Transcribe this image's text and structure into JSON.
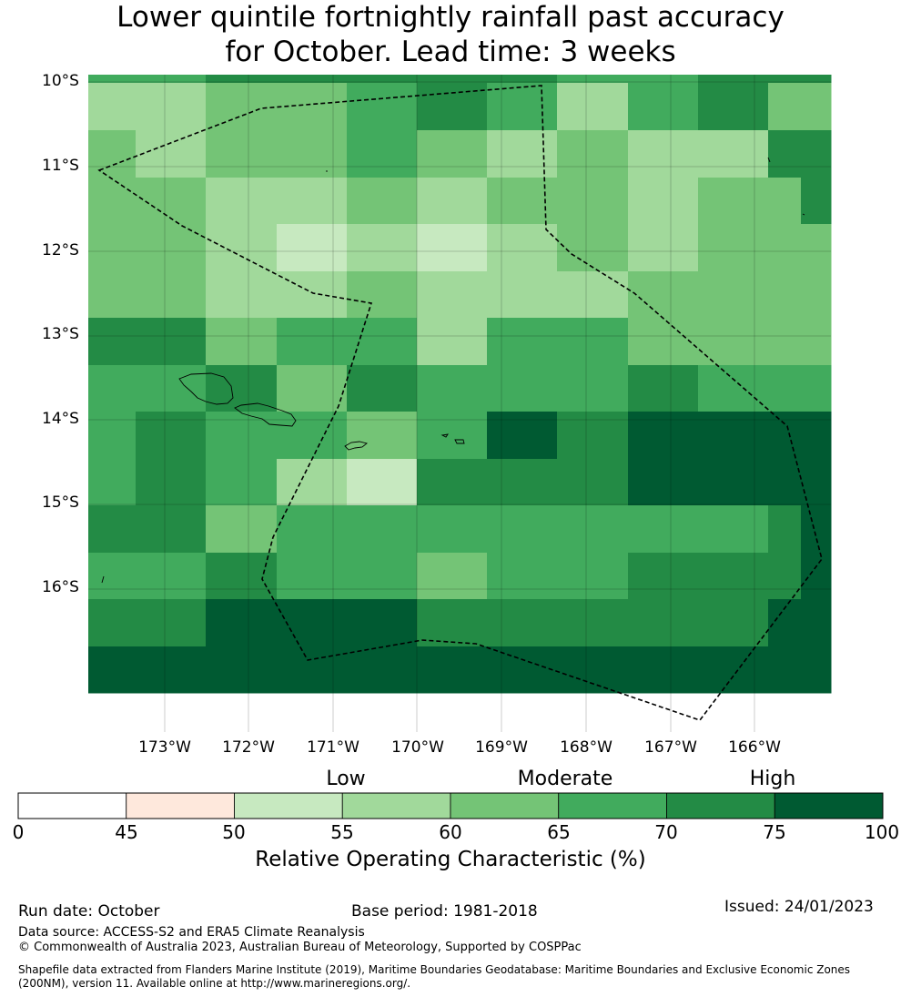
{
  "title": {
    "line1": "Lower quintile fortnightly rainfall past accuracy",
    "line2": "for October. Lead time: 3 weeks"
  },
  "map": {
    "lat_labels": [
      "10°S",
      "11°S",
      "12°S",
      "13°S",
      "14°S",
      "15°S",
      "16°S"
    ],
    "lon_labels": [
      "173°W",
      "172°W",
      "171°W",
      "170°W",
      "169°W",
      "168°W",
      "167°W",
      "166°W"
    ],
    "grid": [
      [
        3,
        3,
        5,
        5,
        5,
        5,
        5,
        3,
        3,
        5,
        4,
        5
      ],
      [
        1,
        1,
        2,
        2,
        3,
        5,
        3,
        1,
        3,
        4,
        2,
        2
      ],
      [
        2,
        1,
        2,
        2,
        3,
        2,
        1,
        2,
        1,
        1,
        5,
        5
      ],
      [
        2,
        2,
        1,
        1,
        2,
        1,
        2,
        2,
        1,
        2,
        2,
        5
      ],
      [
        2,
        2,
        1,
        0,
        1,
        0,
        1,
        2,
        1,
        2,
        2,
        2
      ],
      [
        2,
        2,
        1,
        1,
        2,
        1,
        1,
        1,
        2,
        2,
        2,
        2
      ],
      [
        4,
        4,
        2,
        3,
        3,
        1,
        3,
        3,
        2,
        2,
        2,
        2
      ],
      [
        3,
        3,
        4,
        2,
        4,
        3,
        3,
        3,
        4,
        3,
        3,
        3
      ],
      [
        3,
        4,
        3,
        3,
        2,
        3,
        6,
        4,
        6,
        6,
        6,
        6
      ],
      [
        3,
        4,
        3,
        1,
        0,
        4,
        4,
        4,
        6,
        6,
        6,
        6
      ],
      [
        4,
        4,
        2,
        3,
        3,
        3,
        3,
        3,
        3,
        3,
        4,
        6
      ],
      [
        3,
        3,
        4,
        3,
        3,
        2,
        3,
        3,
        4,
        4,
        4,
        6
      ],
      [
        4,
        4,
        6,
        6,
        6,
        4,
        4,
        4,
        4,
        4,
        6,
        6
      ],
      [
        6,
        6,
        6,
        6,
        6,
        6,
        6,
        6,
        6,
        6,
        6,
        6
      ]
    ],
    "boundary_color": "#000000",
    "land_color": "#000000"
  },
  "legend": {
    "category_labels": [
      "Low",
      "Moderate",
      "High"
    ],
    "ticks": [
      "0",
      "45",
      "50",
      "55",
      "60",
      "65",
      "70",
      "75",
      "100"
    ],
    "colors": [
      "#ffffff",
      "#fee8dc",
      "#c7e9c0",
      "#a1d99b",
      "#74c476",
      "#41ab5d",
      "#238b45",
      "#005a32"
    ],
    "title": "Relative Operating Characteristic (%)"
  },
  "palette": [
    "#c7e9c0",
    "#a1d99b",
    "#74c476",
    "#41ab5d",
    "#238b45",
    "#238b45",
    "#005a32"
  ],
  "footer": {
    "run_date": "Run date: October",
    "base_period": "Base period: 1981-2018",
    "issued": "Issued: 24/01/2023",
    "data_source": "Data source: ACCESS-S2 and ERA5 Climate Reanalysis",
    "copyright": "© Commonwealth of Australia 2023, Australian Bureau of Meteorology, Supported by COSPPac",
    "shapefile_line1": "Shapefile data extracted from Flanders Marine Institute (2019), Maritime Boundaries Geodatabase: Maritime Boundaries and Exclusive Economic Zones",
    "shapefile_line2": "(200NM), version 11. Available online at http://www.marineregions.org/."
  }
}
